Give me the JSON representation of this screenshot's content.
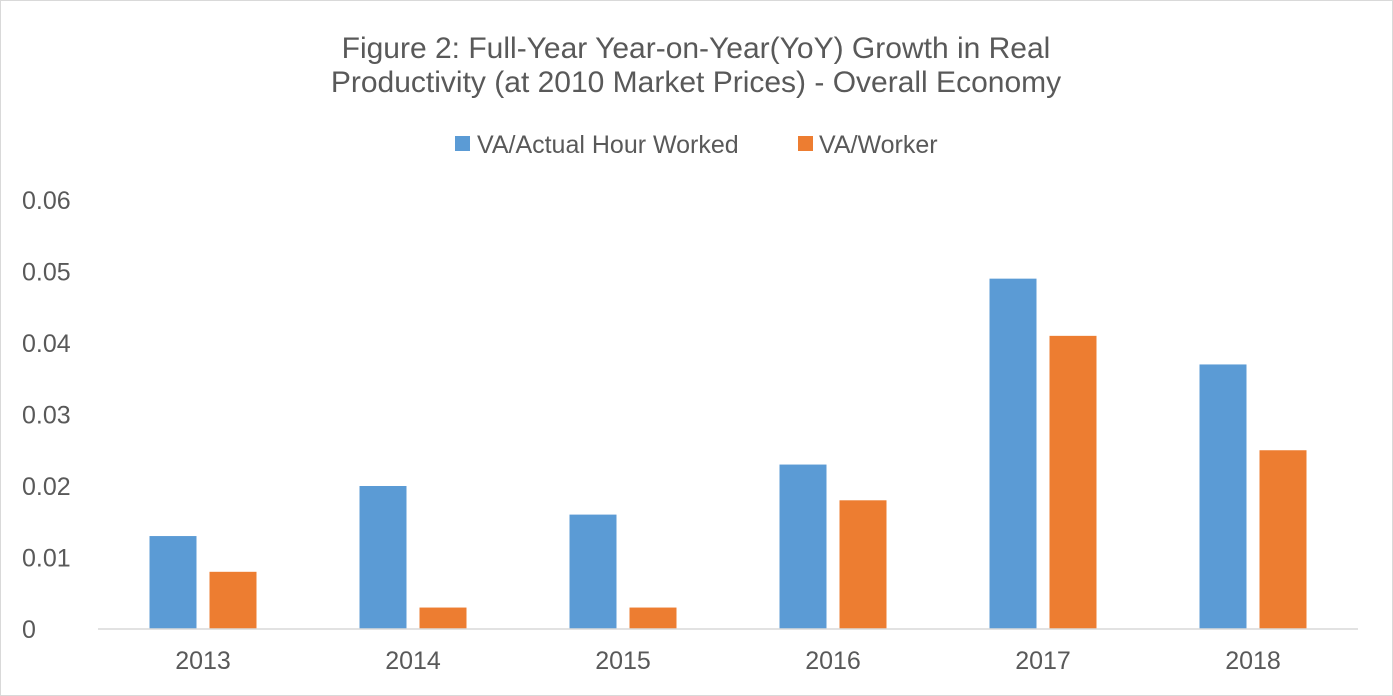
{
  "chart_data": {
    "type": "bar",
    "title_lines": [
      "Figure 2: Full-Year Year-on-Year(YoY) Growth in Real",
      "Productivity (at 2010 Market Prices) - Overall Economy"
    ],
    "xlabel": "",
    "ylabel": "",
    "categories": [
      "2013",
      "2014",
      "2015",
      "2016",
      "2017",
      "2018"
    ],
    "series": [
      {
        "name": "VA/Actual Hour Worked",
        "color": "#5b9bd5",
        "values": [
          0.013,
          0.02,
          0.016,
          0.023,
          0.049,
          0.037
        ]
      },
      {
        "name": "VA/Worker",
        "color": "#ed7d31",
        "values": [
          0.008,
          0.003,
          0.003,
          0.018,
          0.041,
          0.025
        ]
      }
    ],
    "ylim": [
      0,
      0.06
    ],
    "yticks": [
      "0",
      "0.01",
      "0.02",
      "0.03",
      "0.04",
      "0.05",
      "0.06"
    ],
    "grid": false,
    "legend_position": "top"
  }
}
